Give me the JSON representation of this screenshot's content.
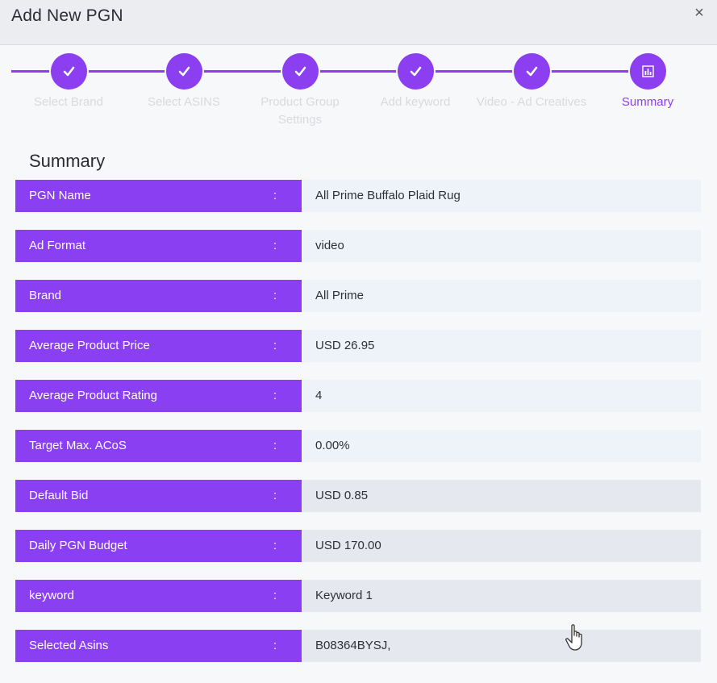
{
  "modal": {
    "title": "Add New PGN",
    "close_label": "×"
  },
  "stepper": {
    "steps": [
      {
        "label": "Select Brand",
        "status": "done"
      },
      {
        "label": "Select ASINS",
        "status": "done"
      },
      {
        "label": "Product Group Settings",
        "status": "done"
      },
      {
        "label": "Add keyword",
        "status": "done"
      },
      {
        "label": "Video - Ad Creatives",
        "status": "done"
      },
      {
        "label": "Summary",
        "status": "active"
      }
    ],
    "accent_color": "#8b3ff0"
  },
  "summary": {
    "title": "Summary",
    "separator": ":",
    "rows": [
      {
        "key": "PGN Name",
        "value": "All Prime Buffalo Plaid Rug"
      },
      {
        "key": "Ad Format",
        "value": "video"
      },
      {
        "key": "Brand",
        "value": "All Prime"
      },
      {
        "key": "Average Product Price",
        "value": "USD 26.95"
      },
      {
        "key": "Average Product Rating",
        "value": "4"
      },
      {
        "key": "Target Max. ACoS",
        "value": "0.00%"
      },
      {
        "key": "Default Bid",
        "value": "USD 0.85"
      },
      {
        "key": "Daily PGN Budget",
        "value": "USD 170.00"
      },
      {
        "key": "keyword",
        "value": "Keyword 1"
      },
      {
        "key": "Selected Asins",
        "value": "B08364BYSJ,"
      }
    ]
  },
  "icons": {
    "step_done": "check-icon",
    "step_summary": "bar-chart-icon",
    "pointer": "hand-pointer-icon"
  }
}
